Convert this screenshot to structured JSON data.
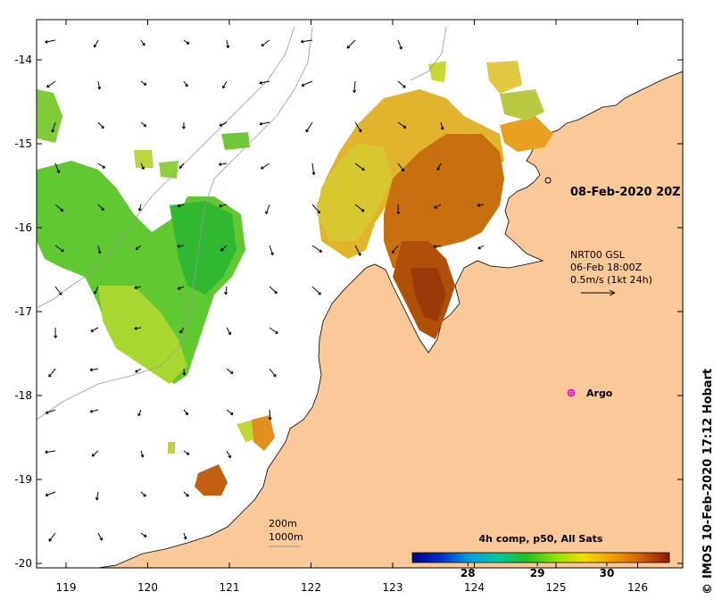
{
  "map": {
    "lon_ticks": [
      "119",
      "120",
      "121",
      "122",
      "123",
      "124",
      "125",
      "126"
    ],
    "lat_ticks": [
      "-14",
      "-15",
      "-16",
      "-17",
      "-18",
      "-19",
      "-20"
    ],
    "land_color": "#fbc898",
    "ocean_color": "#ffffff"
  },
  "annotations": {
    "date_label": "08-Feb-2020 20Z",
    "current_product": "NRT00 GSL",
    "current_time": "06-Feb 18:00Z",
    "current_scale": "0.5m/s (1kt 24h)",
    "argo_label": "Argo",
    "isobath_200": "200m",
    "isobath_1000": "1000m"
  },
  "colorbar": {
    "title": "4h comp, p50, All Sats",
    "ticks": [
      "28",
      "29",
      "30"
    ],
    "tick_values": [
      28,
      29,
      30
    ],
    "range": [
      27.2,
      30.9
    ],
    "stops": [
      "#00008b",
      "#0033cc",
      "#00a0e0",
      "#00c8a0",
      "#20c020",
      "#90e000",
      "#f0e000",
      "#f0a000",
      "#d06000",
      "#8b1a00"
    ]
  },
  "credit": "IMOS 10-Feb-2020 17:12 Hobart",
  "credit_symbol": "©"
}
